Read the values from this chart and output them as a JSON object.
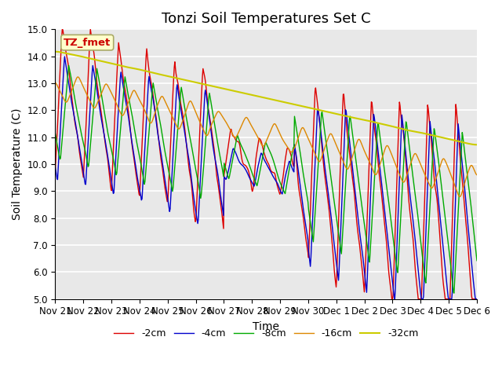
{
  "title": "Tonzi Soil Temperatures Set C",
  "xlabel": "Time",
  "ylabel": "Soil Temperature (C)",
  "ylim": [
    5.0,
    15.0
  ],
  "yticks": [
    5.0,
    6.0,
    7.0,
    8.0,
    9.0,
    10.0,
    11.0,
    12.0,
    13.0,
    14.0,
    15.0
  ],
  "xtick_labels": [
    "Nov 21",
    "Nov 22",
    "Nov 23",
    "Nov 24",
    "Nov 25",
    "Nov 26",
    "Nov 27",
    "Nov 28",
    "Nov 29",
    "Nov 30",
    "Dec 1",
    "Dec 2",
    "Dec 3",
    "Dec 4",
    "Dec 5",
    "Dec 6"
  ],
  "line_colors": {
    "2cm": "#dd0000",
    "4cm": "#0000cc",
    "8cm": "#00aa00",
    "16cm": "#dd8800",
    "32cm": "#cccc00"
  },
  "legend_labels": [
    "-2cm",
    "-4cm",
    "-8cm",
    "-16cm",
    "-32cm"
  ],
  "annotation_text": "TZ_fmet",
  "annotation_color": "#cc0000",
  "annotation_bg": "#ffffcc",
  "background_color": "#e8e8e8",
  "grid_color": "#ffffff",
  "title_fontsize": 13,
  "axis_fontsize": 10,
  "tick_fontsize": 8.5,
  "figsize": [
    6.4,
    4.8
  ],
  "dpi": 100
}
